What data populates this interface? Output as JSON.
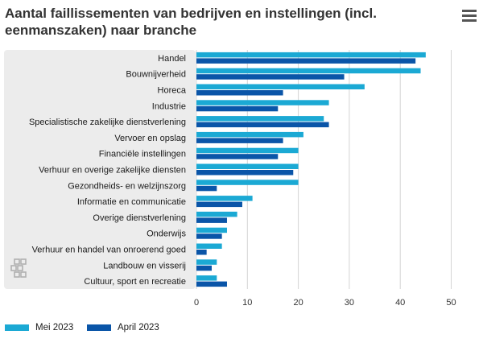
{
  "header": {
    "title": "Aantal faillissementen van bedrijven en instellingen (incl. eenmanszaken) naar branche",
    "menu_icon": "hamburger-menu-icon"
  },
  "logo": {
    "icon": "cbs-logo-icon"
  },
  "colors": {
    "mei": "#1ba9d4",
    "april": "#0a55a8",
    "panel": "#ececec",
    "grid": "#d4d4d4"
  },
  "legend": {
    "items": [
      {
        "label": "Mei 2023",
        "color": "#1ba9d4"
      },
      {
        "label": "April 2023",
        "color": "#0a55a8"
      }
    ]
  },
  "chart_data": {
    "type": "bar",
    "orientation": "horizontal",
    "title": "Aantal faillissementen van bedrijven en instellingen (incl. eenmanszaken) naar branche",
    "xlabel": "",
    "ylabel": "",
    "xlim": [
      0,
      50
    ],
    "xticks": [
      0,
      10,
      20,
      30,
      40,
      50
    ],
    "grid": true,
    "legend_position": "bottom-left",
    "categories": [
      "Handel",
      "Bouwnijverheid",
      "Horeca",
      "Industrie",
      "Specialistische zakelijke dienstverlening",
      "Vervoer en opslag",
      "Financiële instellingen",
      "Verhuur en overige zakelijke diensten",
      "Gezondheids- en welzijnszorg",
      "Informatie en communicatie",
      "Overige dienstverlening",
      "Onderwijs",
      "Verhuur en handel van onroerend goed",
      "Landbouw en visserij",
      "Cultuur, sport en recreatie"
    ],
    "series": [
      {
        "name": "Mei 2023",
        "values": [
          45,
          44,
          33,
          26,
          25,
          21,
          20,
          20,
          20,
          11,
          8,
          6,
          5,
          4,
          4
        ]
      },
      {
        "name": "April 2023",
        "values": [
          43,
          29,
          17,
          16,
          26,
          17,
          16,
          19,
          4,
          9,
          6,
          5,
          2,
          3,
          6
        ]
      }
    ]
  }
}
